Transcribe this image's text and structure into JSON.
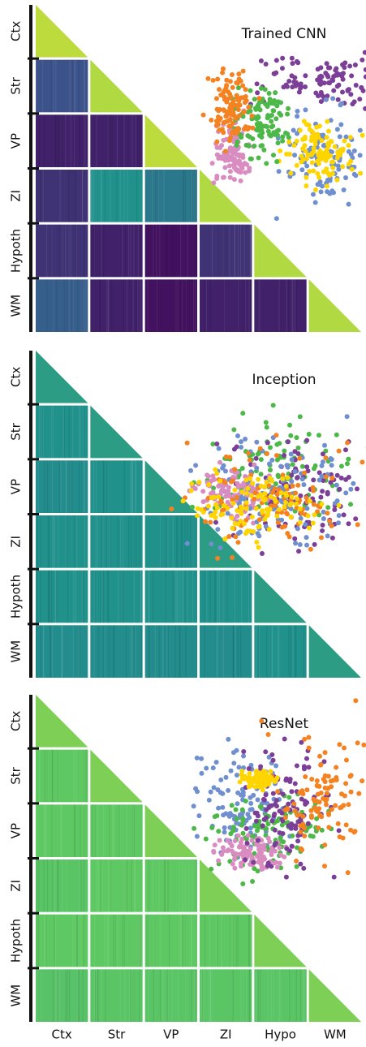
{
  "chart_data": [
    {
      "type": "heatmap",
      "title": "Trained CNN",
      "colormap": "viridis",
      "vlim": [
        0,
        1
      ],
      "y_categories": [
        "Ctx",
        "Str",
        "VP",
        "ZI",
        "Hypoth",
        "WM"
      ],
      "values": [
        [
          0.9,
          null,
          null,
          null,
          null,
          null
        ],
        [
          0.25,
          0.88,
          null,
          null,
          null,
          null
        ],
        [
          0.1,
          0.1,
          0.9,
          null,
          null,
          null
        ],
        [
          0.15,
          0.5,
          0.4,
          0.88,
          null,
          null
        ],
        [
          0.15,
          0.1,
          0.05,
          0.15,
          0.88,
          null
        ],
        [
          0.3,
          0.1,
          0.05,
          0.1,
          0.1,
          0.88
        ]
      ]
    },
    {
      "type": "heatmap",
      "title": "Inception",
      "colormap": "viridis",
      "vlim": [
        0,
        1
      ],
      "y_categories": [
        "Ctx",
        "Str",
        "VP",
        "ZI",
        "Hypoth",
        "WM"
      ],
      "values": [
        [
          0.55,
          null,
          null,
          null,
          null,
          null
        ],
        [
          0.5,
          0.55,
          null,
          null,
          null,
          null
        ],
        [
          0.48,
          0.5,
          0.55,
          null,
          null,
          null
        ],
        [
          0.5,
          0.5,
          0.5,
          0.55,
          null,
          null
        ],
        [
          0.5,
          0.5,
          0.5,
          0.5,
          0.55,
          null
        ],
        [
          0.48,
          0.48,
          0.48,
          0.48,
          0.5,
          0.55
        ]
      ]
    },
    {
      "type": "heatmap",
      "title": "ResNet",
      "colormap": "viridis",
      "vlim": [
        0,
        1
      ],
      "y_categories": [
        "Ctx",
        "Str",
        "VP",
        "ZI",
        "Hypoth",
        "WM"
      ],
      "x_categories": [
        "Ctx",
        "Str",
        "VP",
        "ZI",
        "Hypo",
        "WM"
      ],
      "values": [
        [
          0.8,
          null,
          null,
          null,
          null,
          null
        ],
        [
          0.75,
          0.8,
          null,
          null,
          null,
          null
        ],
        [
          0.75,
          0.75,
          0.8,
          null,
          null,
          null
        ],
        [
          0.73,
          0.75,
          0.75,
          0.8,
          null,
          null
        ],
        [
          0.75,
          0.75,
          0.75,
          0.75,
          0.8,
          null
        ],
        [
          0.72,
          0.73,
          0.73,
          0.73,
          0.73,
          0.8
        ]
      ]
    }
  ]
}
